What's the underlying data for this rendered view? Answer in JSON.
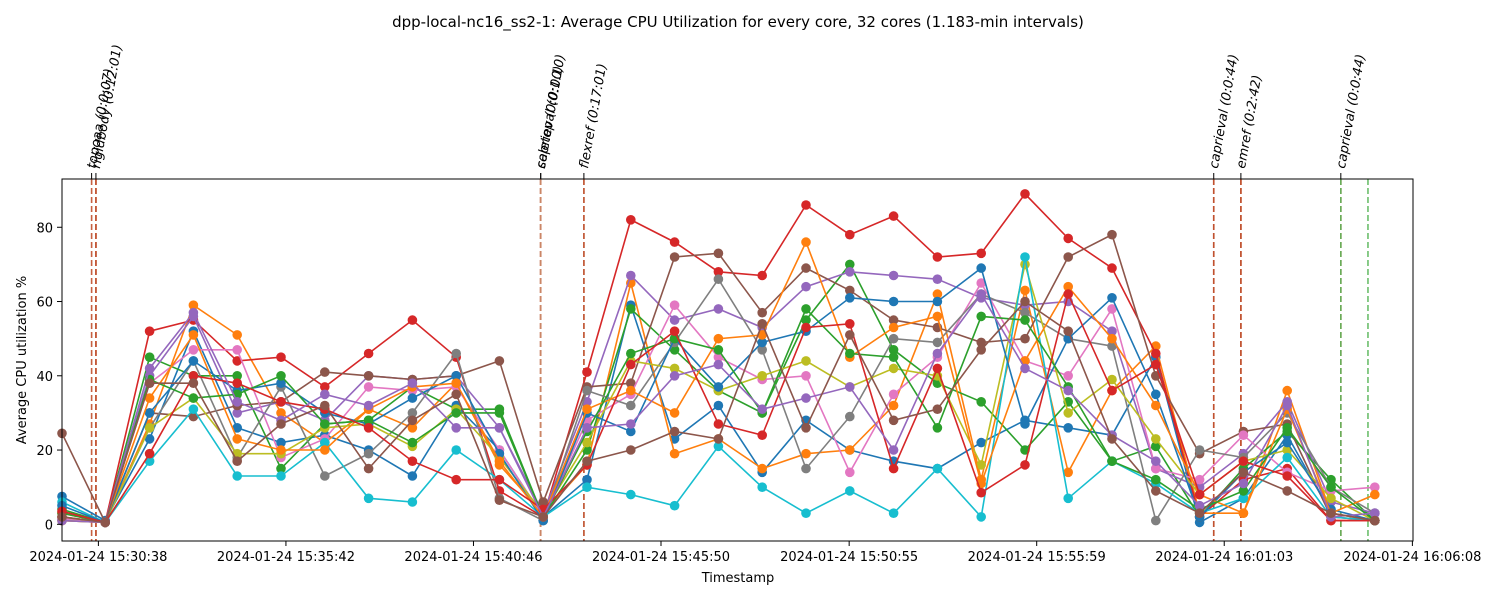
{
  "chart_data": {
    "type": "line",
    "title": "dpp-local-nc16_ss2-1: Average CPU Utilization for every core, 32 cores (1.183-min intervals)",
    "xlabel": "Timestamp",
    "ylabel": "Average CPU utilization %",
    "ylim": [
      -4.5,
      93
    ],
    "yticks": [
      0,
      20,
      40,
      60,
      80
    ],
    "x_ticks": [
      {
        "t": 0,
        "label": "2024-01-24 15:30:38"
      },
      {
        "t": 304,
        "label": "2024-01-24 15:35:42"
      },
      {
        "t": 608,
        "label": "2024-01-24 15:40:46"
      },
      {
        "t": 912,
        "label": "2024-01-24 15:45:50"
      },
      {
        "t": 1217,
        "label": "2024-01-24 15:50:55"
      },
      {
        "t": 1521,
        "label": "2024-01-24 15:55:59"
      },
      {
        "t": 1825,
        "label": "2024-01-24 16:01:03"
      },
      {
        "t": 2130,
        "label": "2024-01-24 16:06:08"
      }
    ],
    "x_unit": "seconds after 2024-01-24 15:30:38",
    "xlim": [
      -59,
      2131
    ],
    "x": [
      -59,
      11,
      83,
      154,
      225,
      296,
      367,
      438,
      509,
      580,
      650,
      721,
      792,
      863,
      934,
      1005,
      1076,
      1147,
      1218,
      1289,
      1360,
      1431,
      1502,
      1572,
      1643,
      1714,
      1785,
      1856,
      1927,
      1998,
      2069
    ],
    "grid": false,
    "legend": "none",
    "events": [
      {
        "label": "topoaa (0:0:07)",
        "start": -11,
        "end": -4,
        "color": "#c0502e"
      },
      {
        "label": "rigidbody (0:12:01)",
        "start": -4,
        "end": 717,
        "color": "#c0502e"
      },
      {
        "label": "seletop (0:0:00)",
        "start": 717,
        "end": 717,
        "color": "#a0330f"
      },
      {
        "label": "caprieval (0:1:10)",
        "start": 717,
        "end": 787,
        "color": "#d09070"
      },
      {
        "label": "flexref (0:17:01)",
        "start": 787,
        "end": 1808,
        "color": "#c0502e"
      },
      {
        "label": "caprieval (0:0:44)",
        "start": 1808,
        "end": 1852,
        "color": "#c0502e"
      },
      {
        "label": "emref (0:2:42)",
        "start": 1852,
        "end": 2014,
        "color": "#c0502e"
      },
      {
        "label": "caprieval (0:0:44)",
        "start": 2014,
        "end": 2058,
        "color": "#5cb85c"
      }
    ],
    "series": [
      {
        "color": "#1f77b4",
        "values": [
          7.5,
          1,
          23,
          52,
          26,
          22,
          24,
          20,
          13,
          32,
          20,
          2,
          12,
          59,
          23,
          32,
          14,
          28,
          20,
          17,
          15,
          22,
          28,
          26,
          24,
          45,
          0.5,
          7,
          24,
          3,
          1
        ]
      },
      {
        "color": "#ff7f0e",
        "values": [
          3,
          0.5,
          27,
          59,
          51,
          30,
          22,
          31,
          26,
          38,
          16,
          3,
          16,
          65,
          19,
          23,
          15,
          19,
          20,
          32,
          62,
          12,
          63,
          14,
          36,
          48,
          3,
          3,
          36,
          3,
          1
        ]
      },
      {
        "color": "#2ca02c",
        "values": [
          4,
          0.5,
          45,
          40,
          40,
          15,
          27,
          28,
          37,
          31,
          31,
          2,
          20,
          58,
          47,
          36,
          30,
          55,
          70,
          47,
          38,
          33,
          20,
          33,
          17,
          21,
          2,
          15,
          25,
          12,
          1
        ]
      },
      {
        "color": "#d62728",
        "values": [
          1,
          0.5,
          52,
          55,
          44,
          45,
          37,
          46,
          55,
          45,
          9,
          2,
          41,
          82,
          76,
          68,
          67,
          86,
          78,
          83,
          72,
          73,
          89,
          77,
          69,
          46,
          2,
          12,
          15,
          1,
          1
        ]
      },
      {
        "color": "#9467bd",
        "values": [
          2,
          0.5,
          40,
          56,
          30,
          33,
          28,
          40,
          39,
          40,
          26,
          3,
          33,
          67,
          55,
          58,
          53,
          64,
          68,
          67,
          66,
          61,
          59,
          60,
          52,
          15,
          10,
          19,
          33,
          6,
          3
        ]
      },
      {
        "color": "#8c564b",
        "values": [
          24.5,
          0.5,
          30,
          29,
          32,
          33,
          41,
          40,
          39,
          40,
          44,
          6,
          37,
          38,
          72,
          73,
          57,
          69,
          63,
          55,
          53,
          49,
          50,
          72,
          78,
          40,
          19,
          25,
          27,
          2,
          1
        ]
      },
      {
        "color": "#e377c2",
        "values": [
          1.5,
          0.5,
          38,
          47,
          47,
          18,
          23,
          37,
          36,
          37,
          20,
          2,
          28,
          35,
          59,
          45,
          39,
          40,
          14,
          35,
          45,
          65,
          44,
          40,
          58,
          15,
          12,
          24,
          14,
          9,
          10
        ]
      },
      {
        "color": "#7f7f7f",
        "values": [
          2,
          0.5,
          26,
          44,
          18,
          37,
          13,
          19,
          30,
          46,
          7,
          1,
          36,
          32,
          49,
          66,
          47,
          15,
          29,
          50,
          49,
          62,
          57,
          50,
          48,
          1,
          20,
          18,
          30,
          10,
          3
        ]
      },
      {
        "color": "#bcbd22",
        "values": [
          1,
          0.5,
          26,
          34,
          19,
          19,
          26,
          27,
          21,
          31,
          18,
          3,
          22,
          44,
          42,
          36,
          40,
          44,
          37,
          42,
          40,
          16,
          70,
          30,
          39,
          23,
          8,
          17,
          20,
          7,
          1
        ]
      },
      {
        "color": "#17becf",
        "values": [
          6,
          0.5,
          17,
          31,
          13,
          13,
          22,
          7,
          6,
          20,
          12,
          2,
          10,
          8,
          5,
          21,
          10,
          3,
          9,
          3,
          15,
          2,
          72,
          7,
          17,
          11,
          3,
          7,
          18,
          2,
          1
        ]
      },
      {
        "color": "#1f77b4",
        "values": [
          5,
          0.5,
          30,
          44,
          36,
          38,
          30,
          27,
          34,
          40,
          19,
          1,
          30,
          25,
          50,
          37,
          49,
          52,
          61,
          60,
          60,
          69,
          27,
          50,
          61,
          35,
          2,
          14,
          22,
          4,
          1
        ]
      },
      {
        "color": "#ff7f0e",
        "values": [
          2,
          0.5,
          34,
          51,
          23,
          20,
          20,
          31,
          37,
          38,
          17,
          2,
          31,
          36,
          30,
          50,
          51,
          76,
          45,
          53,
          56,
          11,
          44,
          64,
          50,
          32,
          8,
          3,
          31,
          3,
          8
        ]
      },
      {
        "color": "#2ca02c",
        "values": [
          3,
          0.5,
          39,
          34,
          35,
          40,
          27,
          28,
          22,
          30,
          30,
          2,
          25,
          46,
          50,
          47,
          30,
          58,
          46,
          45,
          26,
          56,
          55,
          37,
          17,
          12,
          4,
          9,
          26,
          10,
          1
        ]
      },
      {
        "color": "#d62728",
        "values": [
          3.5,
          0.5,
          19,
          40,
          38,
          33,
          31,
          26,
          17,
          12,
          12,
          4,
          16,
          43,
          52,
          27,
          24,
          53,
          54,
          15,
          42,
          8.5,
          16,
          62,
          36,
          43,
          8,
          17,
          13,
          1,
          1
        ]
      },
      {
        "color": "#9467bd",
        "values": [
          1,
          0.5,
          42,
          57,
          33,
          28,
          35,
          32,
          38,
          26,
          26,
          2,
          26,
          27,
          40,
          43,
          31,
          34,
          37,
          20,
          46,
          62,
          42,
          36,
          24,
          17,
          5,
          11,
          32,
          2,
          3
        ]
      },
      {
        "color": "#8c564b",
        "values": [
          2,
          0.5,
          38,
          38,
          17,
          27,
          32,
          15,
          28,
          35,
          6.5,
          2,
          17,
          20,
          25,
          23,
          54,
          26,
          51,
          28,
          31,
          47,
          60,
          52,
          23,
          9,
          3,
          14,
          9,
          3,
          1
        ]
      }
    ]
  }
}
